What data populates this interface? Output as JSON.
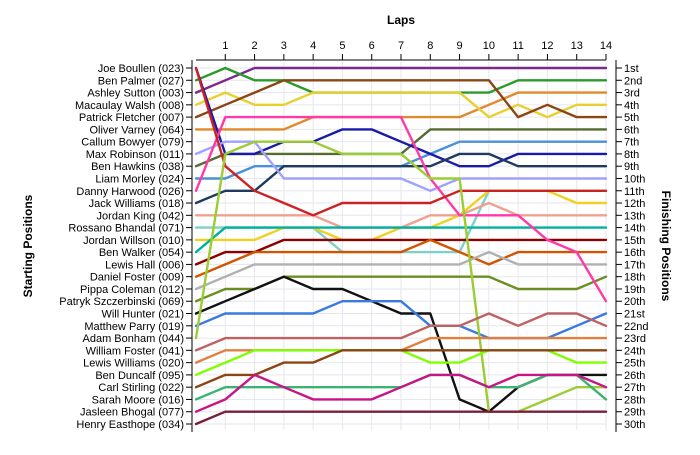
{
  "chart_data": {
    "type": "line",
    "title": "",
    "xlabel": "Laps",
    "ylabel_left": "Starting Positions",
    "ylabel_right": "Finishing Positions",
    "x": [
      0,
      1,
      2,
      3,
      4,
      5,
      6,
      7,
      8,
      9,
      10,
      11,
      12,
      13,
      14
    ],
    "xticks": [
      "1",
      "2",
      "3",
      "4",
      "5",
      "6",
      "7",
      "8",
      "9",
      "10",
      "11",
      "12",
      "13",
      "14"
    ],
    "ylim": [
      1,
      30
    ],
    "y_inverted": true,
    "grid": true,
    "starting_positions": [
      "Joe Boullen (023)",
      "Ben Palmer (027)",
      "Ashley Sutton (003)",
      "Macaulay Walsh (008)",
      "Patrick Fletcher (007)",
      "Oliver Varney (064)",
      "Callum Bowyer (079)",
      "Max Robinson (011)",
      "Ben Hawkins (038)",
      "Liam Morley (024)",
      "Danny Harwood (026)",
      "Jack Williams (018)",
      "Jordan King (042)",
      "Rossano Bhandal (071)",
      "Jordan Willson (010)",
      "Ben Walker (054)",
      "Lewis Hall (006)",
      "Daniel Foster (009)",
      "Pippa Coleman (012)",
      "Patryk Szczerbinski (069)",
      "Will Hunter (021)",
      "Matthew Parry (019)",
      "Adam Bonham (044)",
      "William Foster (041)",
      "Lewis Williams (020)",
      "Ben Duncalf (095)",
      "Carl Stirling (022)",
      "Sarah Moore (016)",
      "Jasleen Bhogal (077)",
      "Henry Easthope (034)"
    ],
    "finishing_positions": [
      "1st",
      "2nd",
      "3rd",
      "4th",
      "5th",
      "6th",
      "7th",
      "8th",
      "9th",
      "10th",
      "11th",
      "12th",
      "13th",
      "14th",
      "15th",
      "16th",
      "17th",
      "18th",
      "19th",
      "20th",
      "21st",
      "22nd",
      "23rd",
      "24th",
      "25th",
      "26th",
      "27th",
      "28th",
      "29th",
      "30th"
    ],
    "series": [
      {
        "color": "#7a2a8c",
        "values": [
          3,
          2,
          1,
          1,
          1,
          1,
          1,
          1,
          1,
          1,
          1,
          1,
          1,
          1,
          1
        ]
      },
      {
        "color": "#2b9a2b",
        "values": [
          2,
          1,
          2,
          2,
          3,
          3,
          3,
          3,
          3,
          3,
          3,
          2,
          2,
          2,
          2
        ]
      },
      {
        "color": "#e08a2a",
        "values": [
          6,
          6,
          6,
          6,
          5,
          5,
          5,
          5,
          5,
          5,
          4,
          3,
          3,
          3,
          3
        ]
      },
      {
        "color": "#e8d030",
        "values": [
          4,
          3,
          4,
          4,
          3,
          3,
          3,
          3,
          3,
          3,
          5,
          4,
          5,
          4,
          4
        ]
      },
      {
        "color": "#8b4513",
        "values": [
          5,
          4,
          3,
          2,
          2,
          2,
          2,
          2,
          2,
          2,
          2,
          5,
          4,
          5,
          5
        ]
      },
      {
        "color": "#556b2f",
        "values": [
          9,
          8,
          8,
          8,
          8,
          8,
          8,
          8,
          6,
          6,
          6,
          6,
          6,
          6,
          6
        ]
      },
      {
        "color": "#4a90d9",
        "values": [
          10,
          10,
          9,
          9,
          9,
          9,
          9,
          9,
          8,
          7,
          7,
          7,
          7,
          7,
          7
        ]
      },
      {
        "color": "#1a1aa8",
        "values": [
          1,
          8,
          8,
          7,
          7,
          6,
          6,
          7,
          8,
          9,
          9,
          8,
          8,
          8,
          8
        ]
      },
      {
        "color": "#1e3a5f",
        "values": [
          12,
          11,
          11,
          9,
          9,
          9,
          9,
          9,
          9,
          8,
          8,
          9,
          9,
          9,
          9
        ]
      },
      {
        "color": "#a0a0ff",
        "values": [
          8,
          7,
          7,
          10,
          10,
          10,
          10,
          10,
          11,
          10,
          10,
          10,
          10,
          10,
          10
        ]
      },
      {
        "color": "#7fd0c8",
        "values": [
          14,
          14,
          14,
          14,
          14,
          16,
          16,
          16,
          16,
          16,
          11,
          11,
          11,
          11,
          11
        ]
      },
      {
        "color": "#f0d020",
        "values": [
          15,
          15,
          15,
          14,
          14,
          15,
          15,
          14,
          14,
          13,
          11,
          11,
          11,
          12,
          12
        ]
      },
      {
        "color": "#f0a090",
        "values": [
          13,
          13,
          13,
          13,
          13,
          14,
          14,
          14,
          13,
          13,
          12,
          13,
          13,
          13,
          13
        ]
      },
      {
        "color": "#00b0a0",
        "values": [
          16,
          14,
          14,
          14,
          14,
          14,
          14,
          14,
          14,
          14,
          14,
          14,
          14,
          14,
          14
        ]
      },
      {
        "color": "#8b0000",
        "values": [
          17,
          16,
          16,
          15,
          15,
          15,
          15,
          15,
          15,
          15,
          15,
          15,
          15,
          15,
          15
        ]
      },
      {
        "color": "#d35400",
        "values": [
          18,
          17,
          16,
          16,
          16,
          16,
          16,
          16,
          15,
          16,
          17,
          16,
          16,
          16,
          16
        ]
      },
      {
        "color": "#b0b0b0",
        "values": [
          19,
          18,
          17,
          17,
          17,
          17,
          17,
          17,
          17,
          17,
          16,
          17,
          17,
          17,
          17
        ]
      },
      {
        "color": "#6b8e23",
        "values": [
          20,
          19,
          19,
          18,
          18,
          18,
          18,
          18,
          18,
          18,
          18,
          19,
          19,
          19,
          18
        ]
      },
      {
        "color": "#111111",
        "values": [
          21,
          20,
          19,
          18,
          19,
          19,
          20,
          21,
          21,
          28,
          29,
          27,
          26,
          26,
          26
        ]
      },
      {
        "color": "#ff3aa8",
        "values": [
          11,
          5,
          5,
          5,
          5,
          5,
          5,
          5,
          10,
          13,
          13,
          13,
          15,
          16,
          20
        ]
      },
      {
        "color": "#cc2222",
        "values": [
          1,
          9,
          11,
          12,
          13,
          12,
          12,
          12,
          12,
          11,
          11,
          11,
          11,
          11,
          11
        ]
      },
      {
        "color": "#3a7ae0",
        "values": [
          22,
          21,
          21,
          21,
          21,
          20,
          20,
          20,
          22,
          22,
          23,
          23,
          23,
          22,
          21
        ]
      },
      {
        "color": "#9acd32",
        "values": [
          23,
          8,
          7,
          7,
          7,
          8,
          8,
          8,
          10,
          10,
          29,
          29,
          28,
          27,
          27
        ]
      },
      {
        "color": "#c06060",
        "values": [
          24,
          23,
          23,
          23,
          23,
          23,
          23,
          23,
          22,
          22,
          21,
          22,
          21,
          21,
          22
        ]
      },
      {
        "color": "#e08040",
        "values": [
          25,
          24,
          24,
          24,
          24,
          24,
          24,
          24,
          23,
          23,
          23,
          23,
          23,
          23,
          23
        ]
      },
      {
        "color": "#7fff00",
        "values": [
          26,
          25,
          24,
          24,
          24,
          24,
          24,
          24,
          25,
          25,
          24,
          24,
          24,
          25,
          25
        ]
      },
      {
        "color": "#8b4513",
        "values": [
          27,
          26,
          26,
          25,
          25,
          24,
          24,
          24,
          24,
          24,
          24,
          24,
          24,
          24,
          24
        ]
      },
      {
        "color": "#3cb371",
        "values": [
          28,
          27,
          27,
          27,
          27,
          27,
          27,
          27,
          26,
          26,
          27,
          27,
          26,
          26,
          28
        ]
      },
      {
        "color": "#c71585",
        "values": [
          29,
          28,
          26,
          27,
          28,
          28,
          28,
          27,
          26,
          26,
          27,
          26,
          26,
          26,
          27
        ]
      },
      {
        "color": "#7b1e3a",
        "values": [
          30,
          29,
          29,
          29,
          29,
          29,
          29,
          29,
          29,
          29,
          29,
          29,
          29,
          29,
          29
        ]
      }
    ]
  }
}
